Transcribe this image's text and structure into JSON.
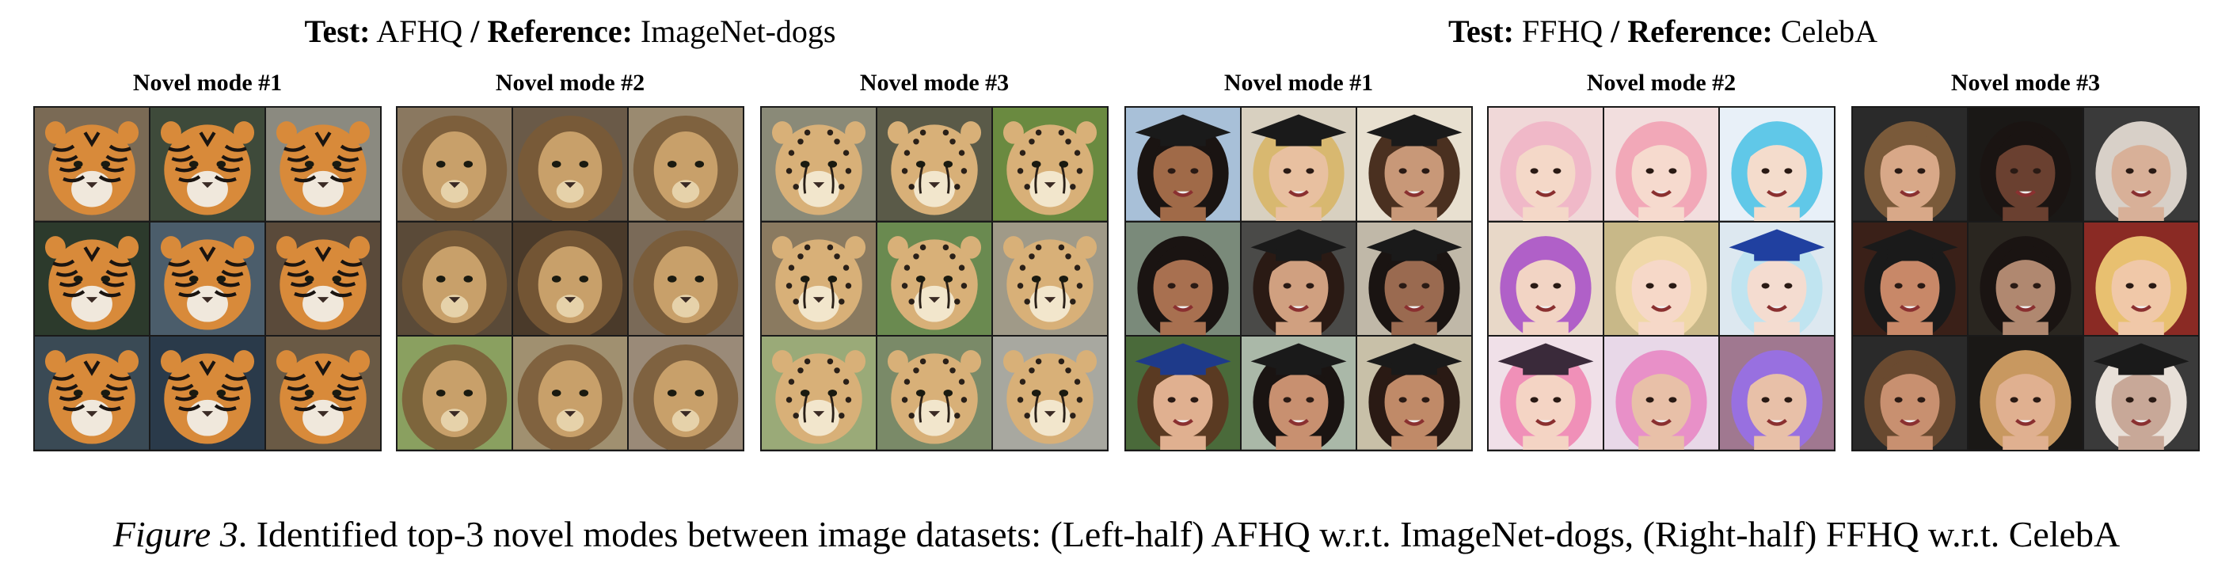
{
  "left_group": {
    "test_label": "Test:",
    "test_value": "AFHQ",
    "sep": "/",
    "ref_label": "Reference:",
    "ref_value": "ImageNet-dogs",
    "modes": [
      {
        "label": "Novel mode #1",
        "subject": "tiger",
        "palette": {
          "bg": [
            "#7a6a55",
            "#3e4a3a",
            "#8b8a80",
            "#2c3a2c",
            "#4b5d6b",
            "#5a4a3a",
            "#3a4a55",
            "#2a3a4a",
            "#6a5a45"
          ],
          "fur": "#d88a3a",
          "mark": "#1a1410",
          "light": "#f0e8dc"
        }
      },
      {
        "label": "Novel mode #2",
        "subject": "lion",
        "palette": {
          "bg": [
            "#8a7860",
            "#6a5a48",
            "#9a8a70",
            "#5a4a38",
            "#4a3a2a",
            "#7a6a58",
            "#8aa060",
            "#a09070",
            "#9a8a78"
          ],
          "fur": "#c8a06a",
          "mark": "#7a5a36",
          "light": "#e6d2aa"
        }
      },
      {
        "label": "Novel mode #3",
        "subject": "cheetah",
        "palette": {
          "bg": [
            "#8a8a78",
            "#5a5a48",
            "#6a8a40",
            "#8a7a60",
            "#6a8a50",
            "#a09a88",
            "#9aaa78",
            "#7a8a68",
            "#a8a8a0"
          ],
          "fur": "#d8b078",
          "mark": "#2a2018",
          "light": "#f2e6cc"
        }
      }
    ]
  },
  "right_group": {
    "test_label": "Test:",
    "test_value": "FFHQ",
    "sep": "/",
    "ref_label": "Reference:",
    "ref_value": "CelebA",
    "modes": [
      {
        "label": "Novel mode #1",
        "subject": "graduate",
        "palette": {
          "bg": [
            "#a8c0d8",
            "#d8d0c0",
            "#e8e0d0",
            "#7a8a7a",
            "#4a4a48",
            "#c0b8a8",
            "#4a6a3a",
            "#aab8a8",
            "#c8c0a8"
          ],
          "skin": [
            "#a06a48",
            "#e8c0a0",
            "#c89878",
            "#a87050",
            "#d0a080",
            "#9a6a50",
            "#e0b090",
            "#c89070",
            "#c08a68"
          ],
          "hair": [
            "#1a1412",
            "#d8b870",
            "#4a3020",
            "#1a1412",
            "#2a1a14",
            "#1a1412",
            "#5a3a22",
            "#1a1412",
            "#2a1a14"
          ],
          "hat": [
            "#1a1a1a",
            "#1a1a1a",
            "#1a1a1a",
            "none",
            "#1a1a1a",
            "#1a1a1a",
            "#1e3a8a",
            "#1a1a1a",
            "#1a1a1a"
          ]
        }
      },
      {
        "label": "Novel mode #2",
        "subject": "cosplay",
        "palette": {
          "bg": [
            "#f0d8d8",
            "#f2dede",
            "#e8f0f8",
            "#e8d8c8",
            "#c8b888",
            "#dde8f0",
            "#f0e0e8",
            "#e8d8e8",
            "#a07890"
          ],
          "skin": [
            "#f4d8c8",
            "#f6dace",
            "#f4dccc",
            "#f2d4c4",
            "#f6d8c8",
            "#f4dcd0",
            "#f4d4c4",
            "#e8c0a8",
            "#e8c0a8"
          ],
          "hair": [
            "#f0b8c8",
            "#f2a8b8",
            "#60c8e8",
            "#b060c8",
            "#f0d8a8",
            "#c0e4f0",
            "#f090b8",
            "#e890c8",
            "#9870e0"
          ],
          "hat": [
            "none",
            "none",
            "none",
            "none",
            "none",
            "#2040a0",
            "#3a2a3a",
            "none",
            "none"
          ]
        }
      },
      {
        "label": "Novel mode #3",
        "subject": "celebrity",
        "palette": {
          "bg": [
            "#2a2a2a",
            "#1a1816",
            "#3a3a3a",
            "#3a2018",
            "#2a2620",
            "#8a2a24",
            "#2a2a2a",
            "#1a1816",
            "#3a3a3a"
          ],
          "skin": [
            "#d8a888",
            "#6a4030",
            "#d8b098",
            "#c88868",
            "#b08870",
            "#f0c8a8",
            "#c89070",
            "#e0b090",
            "#c8a898"
          ],
          "hair": [
            "#7a5a3a",
            "#1a1412",
            "#d8d0c8",
            "#1a1a1a",
            "#1a1412",
            "#e8c070",
            "#6a4a30",
            "#c89860",
            "#e8e0d8"
          ],
          "hat": [
            "none",
            "none",
            "none",
            "#1a1a1a",
            "none",
            "none",
            "none",
            "none",
            "#1a1a1a"
          ]
        }
      }
    ]
  },
  "caption": {
    "label": "Figure 3",
    "text": ". Identified top-3 novel modes between image datasets: (Left-half) AFHQ w.r.t. ImageNet-dogs, (Right-half) FFHQ w.r.t. CelebA"
  }
}
